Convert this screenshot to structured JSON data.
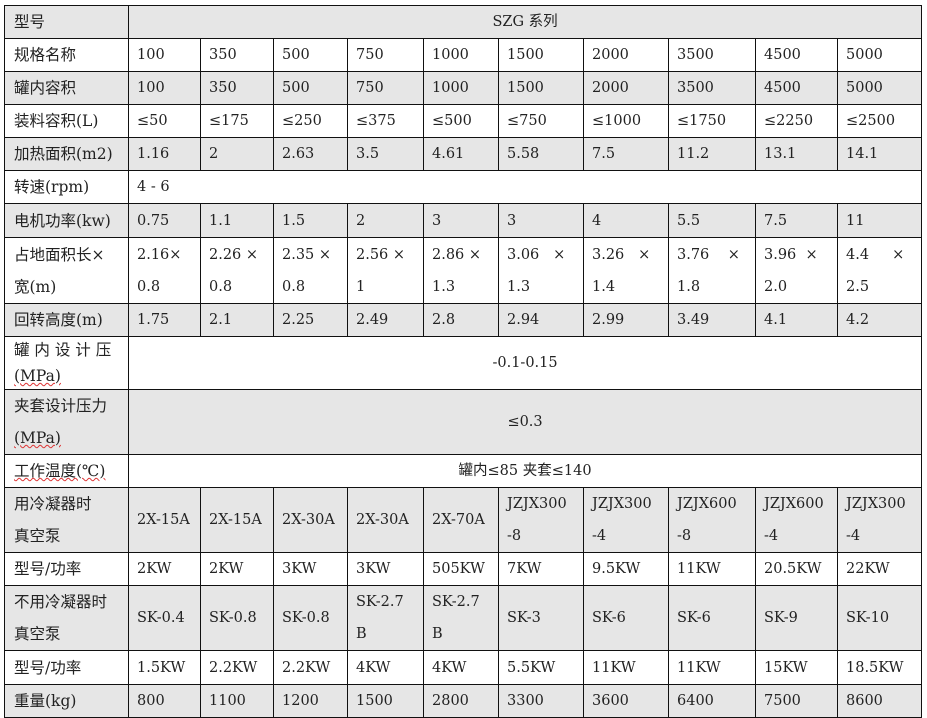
{
  "table": {
    "rows": [
      {
        "label": [
          "型号"
        ],
        "values": [
          [
            "SZG 系列"
          ]
        ]
      },
      {
        "label": [
          "规格名称"
        ],
        "values": [
          [
            "100"
          ],
          [
            "350"
          ],
          [
            "500"
          ],
          [
            "750"
          ],
          [
            "1000"
          ],
          [
            "1500"
          ],
          [
            "2000"
          ],
          [
            "3500"
          ],
          [
            "4500"
          ],
          [
            "5000"
          ]
        ]
      },
      {
        "label": [
          "罐内容积"
        ],
        "values": [
          [
            "100"
          ],
          [
            "350"
          ],
          [
            "500"
          ],
          [
            "750"
          ],
          [
            "1000"
          ],
          [
            "1500"
          ],
          [
            "2000"
          ],
          [
            "3500"
          ],
          [
            "4500"
          ],
          [
            "5000"
          ]
        ]
      },
      {
        "label": [
          "装料容积(L)"
        ],
        "values": [
          [
            "≤50"
          ],
          [
            "≤175"
          ],
          [
            "≤250"
          ],
          [
            "≤375"
          ],
          [
            "≤500"
          ],
          [
            "≤750"
          ],
          [
            "≤1000"
          ],
          [
            "≤1750"
          ],
          [
            "≤2250"
          ],
          [
            "≤2500"
          ]
        ]
      },
      {
        "label": [
          "加热面积(m2)"
        ],
        "values": [
          [
            "1.16"
          ],
          [
            "2"
          ],
          [
            "2.63"
          ],
          [
            "3.5"
          ],
          [
            "4.61"
          ],
          [
            "5.58"
          ],
          [
            "7.5"
          ],
          [
            "11.2"
          ],
          [
            "13.1"
          ],
          [
            "14.1"
          ]
        ]
      },
      {
        "label": [
          "转速(rpm)"
        ],
        "values": [
          [
            "4 - 6"
          ]
        ]
      },
      {
        "label": [
          "电机功率(kw)"
        ],
        "values": [
          [
            "0.75"
          ],
          [
            "1.1"
          ],
          [
            "1.5"
          ],
          [
            "2"
          ],
          [
            "3"
          ],
          [
            "3"
          ],
          [
            "4"
          ],
          [
            "5.5"
          ],
          [
            "7.5"
          ],
          [
            "11"
          ]
        ]
      },
      {
        "label": [
          "占地面积长×",
          "宽(m)"
        ],
        "values": [
          [
            "2.16×",
            "0.8"
          ],
          [
            "2.26 ×",
            "0.8"
          ],
          [
            "2.35 ×",
            "0.8"
          ],
          [
            "2.56 ×",
            "1"
          ],
          [
            "2.86 ×",
            "1.3"
          ],
          [
            "3.06   ×",
            "1.3"
          ],
          [
            "3.26   ×",
            "1.4"
          ],
          [
            "3.76    ×",
            "1.8"
          ],
          [
            "3.96  ×",
            "2.0"
          ],
          [
            "4.4     ×",
            "2.5"
          ]
        ]
      },
      {
        "label": [
          "回转高度(m)"
        ],
        "values": [
          [
            "1.75"
          ],
          [
            "2.1"
          ],
          [
            "2.25"
          ],
          [
            "2.49"
          ],
          [
            "2.8"
          ],
          [
            "2.94"
          ],
          [
            "2.99"
          ],
          [
            "3.49"
          ],
          [
            "4.1"
          ],
          [
            "4.2"
          ]
        ]
      },
      {
        "label": [
          "罐 内 设 计 压",
          "(MPa)"
        ],
        "values": [
          [
            "-0.1-0.15"
          ]
        ]
      },
      {
        "label": [
          "夹套设计压力",
          "(MPa)"
        ],
        "values": [
          [
            "≤0.3"
          ]
        ]
      },
      {
        "label": [
          "工作温度(℃)"
        ],
        "values": [
          [
            "罐内≤85 夹套≤140"
          ]
        ]
      },
      {
        "label": [
          "用冷凝器时",
          "真空泵"
        ],
        "values": [
          [
            "2X-15A"
          ],
          [
            "2X-15A"
          ],
          [
            "2X-30A"
          ],
          [
            "2X-30A"
          ],
          [
            "2X-70A"
          ],
          [
            "JZJX300",
            "-8"
          ],
          [
            "JZJX300",
            "-4"
          ],
          [
            "JZJX600",
            "-8"
          ],
          [
            "JZJX600",
            "-4"
          ],
          [
            "JZJX300",
            "-4"
          ]
        ]
      },
      {
        "label": [
          "型号/功率"
        ],
        "values": [
          [
            "2KW"
          ],
          [
            "2KW"
          ],
          [
            "3KW"
          ],
          [
            "3KW"
          ],
          [
            "505KW"
          ],
          [
            "7KW"
          ],
          [
            "9.5KW"
          ],
          [
            "11KW"
          ],
          [
            "20.5KW"
          ],
          [
            "22KW"
          ]
        ]
      },
      {
        "label": [
          "不用冷凝器时",
          "真空泵"
        ],
        "values": [
          [
            "SK-0.4"
          ],
          [
            "SK-0.8"
          ],
          [
            "SK-0.8"
          ],
          [
            "SK-2.7",
            "B"
          ],
          [
            "SK-2.7",
            "B"
          ],
          [
            "SK-3"
          ],
          [
            "SK-6"
          ],
          [
            "SK-6"
          ],
          [
            "SK-9"
          ],
          [
            "SK-10"
          ]
        ]
      },
      {
        "label": [
          "型号/功率"
        ],
        "values": [
          [
            "1.5KW"
          ],
          [
            "2.2KW"
          ],
          [
            "2.2KW"
          ],
          [
            "4KW"
          ],
          [
            "4KW"
          ],
          [
            "5.5KW"
          ],
          [
            "11KW"
          ],
          [
            "11KW"
          ],
          [
            "15KW"
          ],
          [
            "18.5KW"
          ]
        ]
      },
      {
        "label": [
          "重量(kg)"
        ],
        "values": [
          [
            "800"
          ],
          [
            "1100"
          ],
          [
            "1200"
          ],
          [
            "1500"
          ],
          [
            "2800"
          ],
          [
            "3300"
          ],
          [
            "3600"
          ],
          [
            "6400"
          ],
          [
            "7500"
          ],
          [
            "8600"
          ]
        ]
      }
    ]
  },
  "colors": {
    "shaded_row": "#e6e6e6",
    "border": "#111111"
  }
}
